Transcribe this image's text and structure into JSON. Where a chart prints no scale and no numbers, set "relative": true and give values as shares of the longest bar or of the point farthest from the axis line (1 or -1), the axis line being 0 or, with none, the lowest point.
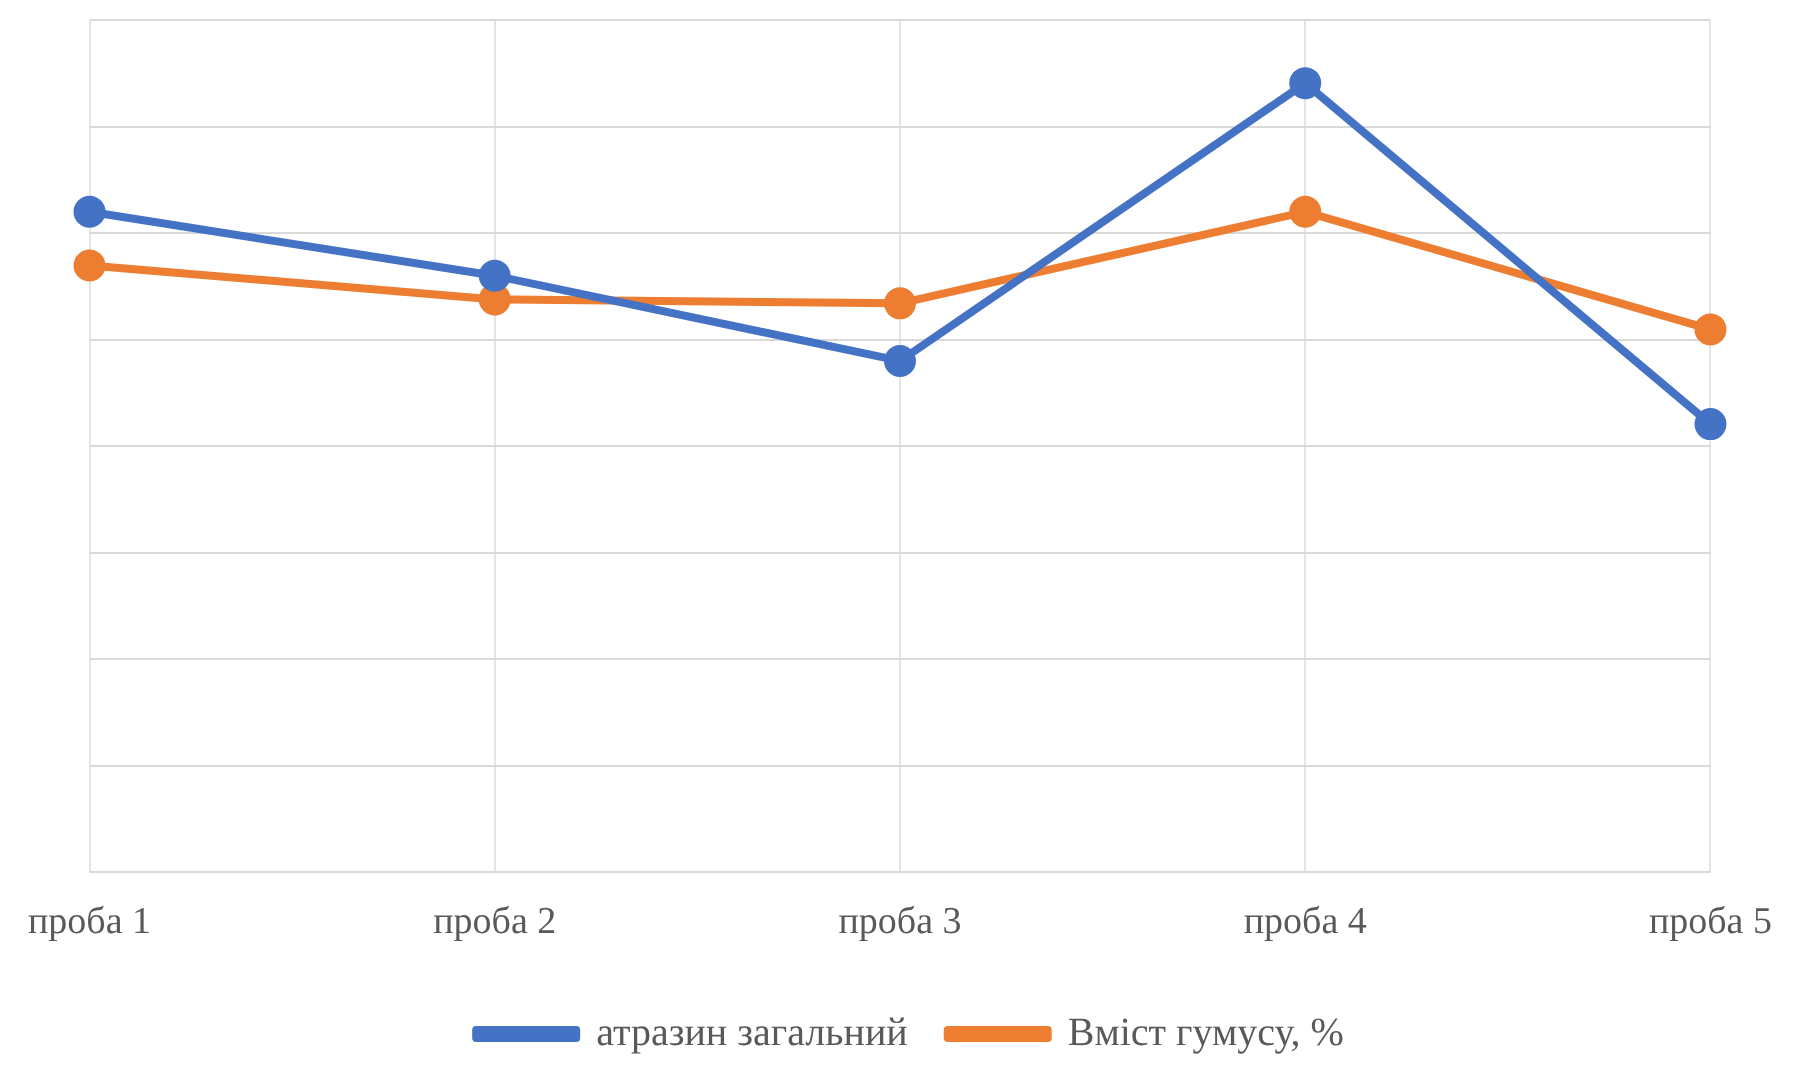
{
  "chart_data": {
    "type": "line",
    "relative": true,
    "categories": [
      "проба 1",
      "проба 2",
      "проба 3",
      "проба 4",
      "проба 5"
    ],
    "series": [
      {
        "name": "атразин загальний",
        "color": "#4472c4",
        "values": [
          0.837,
          0.756,
          0.648,
          1,
          0.568
        ]
      },
      {
        "name": "Вміст гумусу, %",
        "color": "#ed7d31",
        "values": [
          0.769,
          0.726,
          0.721,
          0.837,
          0.688
        ]
      }
    ],
    "grid": true,
    "legend": "bottom",
    "marker": "circle",
    "line_style": "solid"
  }
}
